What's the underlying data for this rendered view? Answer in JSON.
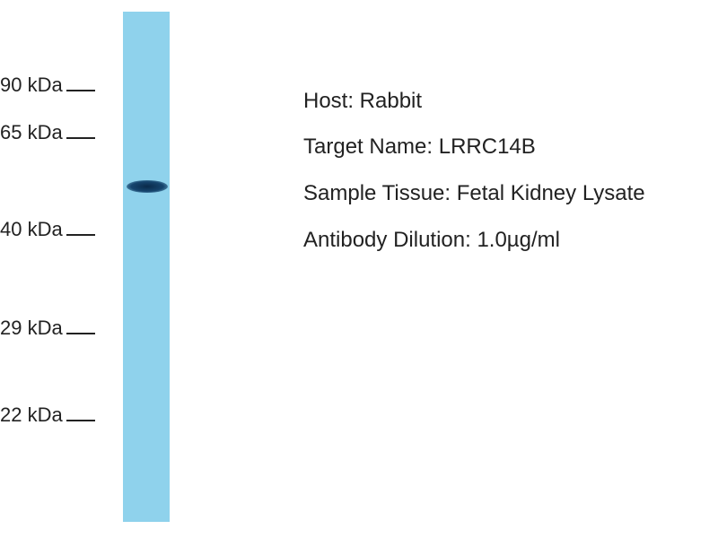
{
  "markers": [
    "90 kDa",
    "65 kDa",
    "40 kDa",
    "29 kDa",
    "22 kDa"
  ],
  "info": [
    "Host: Rabbit",
    "Target Name: LRRC14B",
    "Sample Tissue: Fetal Kidney Lysate",
    "Antibody Dilution: 1.0µg/ml"
  ],
  "colors": {
    "lane": "#8fd2ec",
    "band": "#0a2a4a"
  }
}
